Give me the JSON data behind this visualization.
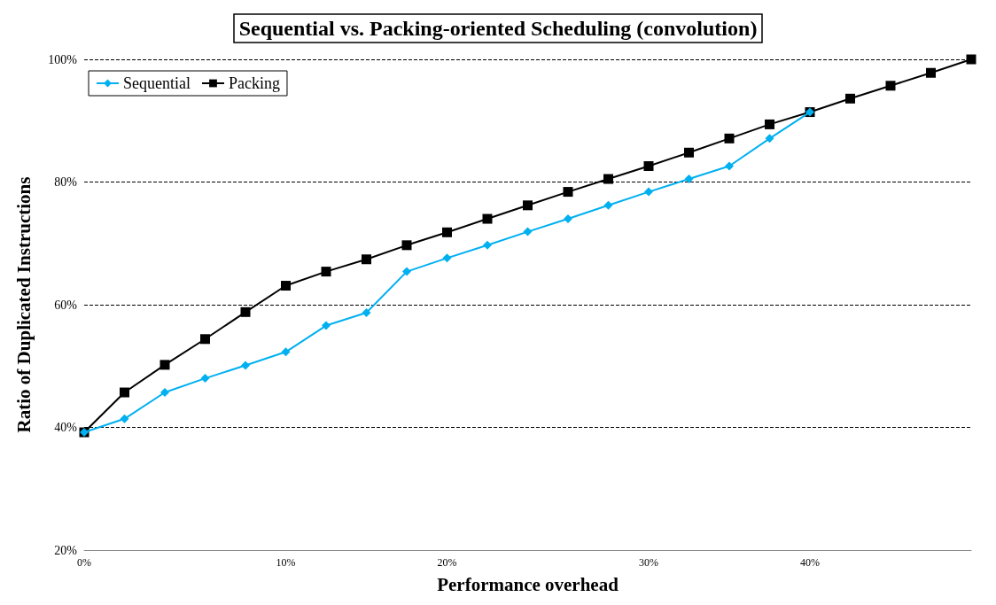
{
  "chart_data": {
    "type": "line",
    "title": "Sequential vs. Packing-oriented Scheduling (convolution)",
    "xlabel": "Performance overhead",
    "ylabel": "Ratio of Duplicated Instructions",
    "categories": [
      "0%",
      null,
      null,
      null,
      null,
      "10%",
      null,
      null,
      null,
      "20%",
      null,
      null,
      null,
      null,
      "30%",
      null,
      null,
      null,
      "40%",
      null,
      null,
      null,
      null
    ],
    "series": [
      {
        "name": "Sequential",
        "color": "#00b0f0",
        "marker": "diamond",
        "values": [
          39.2,
          41.4,
          45.7,
          48.0,
          50.1,
          52.3,
          56.6,
          58.7,
          65.4,
          67.6,
          69.7,
          71.9,
          74.0,
          76.2,
          78.4,
          80.5,
          82.6,
          87.1,
          91.4,
          null,
          null,
          null,
          null
        ]
      },
      {
        "name": "Packing",
        "color": "#000000",
        "marker": "square",
        "values": [
          39.2,
          45.7,
          50.2,
          54.4,
          58.8,
          63.1,
          65.4,
          67.4,
          69.7,
          71.8,
          74.0,
          76.2,
          78.4,
          80.5,
          82.6,
          84.8,
          87.1,
          89.4,
          91.4,
          93.6,
          95.7,
          97.8,
          100
        ]
      }
    ],
    "ylim": [
      20,
      100
    ],
    "yticks": [
      {
        "value": 20,
        "label": "20%"
      },
      {
        "value": 40,
        "label": "40%"
      },
      {
        "value": 60,
        "label": "60%"
      },
      {
        "value": 80,
        "label": "80%"
      },
      {
        "value": 100,
        "label": "100%"
      }
    ],
    "grid": "y",
    "legend": "top left"
  }
}
